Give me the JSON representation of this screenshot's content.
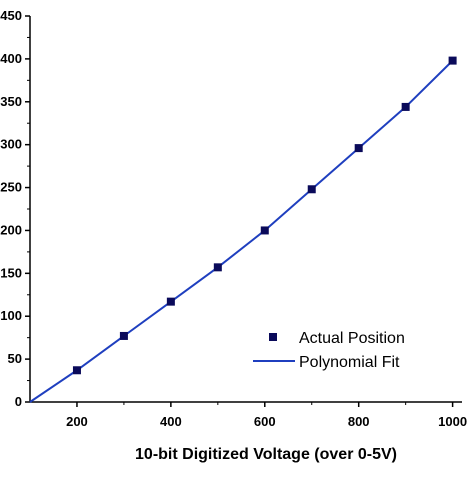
{
  "chart_data": {
    "type": "scatter",
    "title": "",
    "xlabel": "10-bit Digitized Voltage (over 0-5V)",
    "ylabel": "",
    "xlim": [
      100,
      1020
    ],
    "ylim": [
      0,
      450
    ],
    "x_ticks": [
      200,
      400,
      600,
      800,
      1000
    ],
    "x_tick_labels": [
      "200",
      "400",
      "600",
      "800",
      "1000"
    ],
    "y_ticks": [
      0,
      50,
      100,
      150,
      200,
      250,
      300,
      350,
      400,
      450
    ],
    "y_tick_labels": [
      "0",
      "50",
      "100",
      "150",
      "200",
      "250",
      "300",
      "350",
      "400",
      "450"
    ],
    "grid": false,
    "legend_position": "bottom-right",
    "series": [
      {
        "name": "Actual Position",
        "kind": "scatter",
        "marker": "square",
        "color": "#0a0a5a",
        "x": [
          200,
          300,
          400,
          500,
          600,
          700,
          800,
          900,
          1000
        ],
        "y": [
          37,
          77,
          117,
          157,
          200,
          248,
          296,
          344,
          398
        ]
      },
      {
        "name": "Polynomial Fit",
        "kind": "line",
        "color": "#1f3fbf",
        "x": [
          100,
          200,
          300,
          400,
          500,
          600,
          700,
          800,
          900,
          1000
        ],
        "y": [
          0,
          37,
          77,
          117,
          157,
          200,
          248,
          296,
          344,
          398
        ]
      }
    ]
  }
}
